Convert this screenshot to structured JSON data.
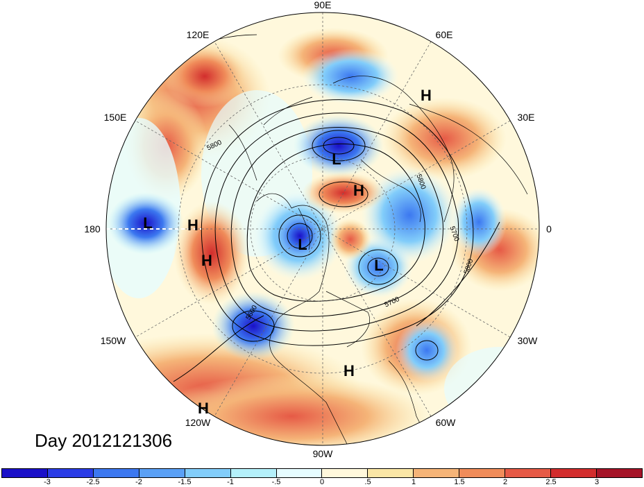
{
  "title": "Day 2012121306",
  "longitude_labels": {
    "l90e": "90E",
    "l60e": "60E",
    "l30e": "30E",
    "l0": "0",
    "l30w": "30W",
    "l60w": "60W",
    "l90w": "90W",
    "l120w": "120W",
    "l150w": "150W",
    "l180": "180",
    "l150e": "150E",
    "l120e": "120E"
  },
  "pressure_centers": [
    {
      "label": "H",
      "lon_text": "near 60E"
    },
    {
      "label": "L",
      "lon_text": "north of 90E"
    },
    {
      "label": "H",
      "lon_text": "pole"
    },
    {
      "label": "L",
      "lon_text": "180"
    },
    {
      "label": "H",
      "lon_text": "near 180"
    },
    {
      "label": "L",
      "lon_text": "Canada"
    },
    {
      "label": "H",
      "lon_text": "NE Pacific"
    },
    {
      "label": "L",
      "lon_text": "Greenland"
    },
    {
      "label": "H",
      "lon_text": "Caribbean"
    },
    {
      "label": "H",
      "lon_text": "120W"
    }
  ],
  "contour_labels": [
    "5800",
    "5800",
    "5700",
    "5800",
    "5600",
    "5700"
  ],
  "colorbar": {
    "colors": [
      "#1a10c8",
      "#2a3ce6",
      "#3c78f0",
      "#5aa0f5",
      "#82cdfa",
      "#b4f0fa",
      "#e6fcff",
      "#fff8dc",
      "#fae6a6",
      "#f5b478",
      "#f08c5a",
      "#e65a46",
      "#d22d2d",
      "#a51428"
    ],
    "tick_labels": [
      "-3",
      "-2.5",
      "-2",
      "-1.5",
      "-1",
      "-.5",
      "0",
      ".5",
      "1",
      "1.5",
      "2",
      "2.5",
      "3"
    ]
  }
}
